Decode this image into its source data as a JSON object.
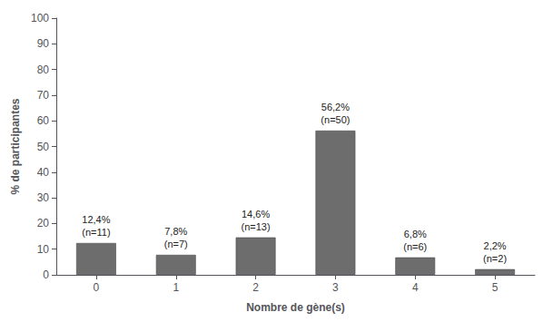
{
  "chart_data": {
    "type": "bar",
    "x_label": "Nombre de gène(s)",
    "y_label": "% de participantes",
    "categories": [
      "0",
      "1",
      "2",
      "3",
      "4",
      "5"
    ],
    "values": [
      12.4,
      7.8,
      14.6,
      56.2,
      6.8,
      2.2
    ],
    "value_labels": [
      "12,4%\n(n=11)",
      "7,8%\n(n=7)",
      "14,6%\n(n=13)",
      "56,2%\n(n=50)",
      "6,8%\n(n=6)",
      "2,2%\n(n=2)"
    ],
    "data_labels": true,
    "color": "#6d6d6d",
    "ylim": [
      0,
      100
    ],
    "yticks": [
      0,
      10,
      20,
      30,
      40,
      50,
      60,
      70,
      80,
      90,
      100
    ],
    "grid": false
  }
}
